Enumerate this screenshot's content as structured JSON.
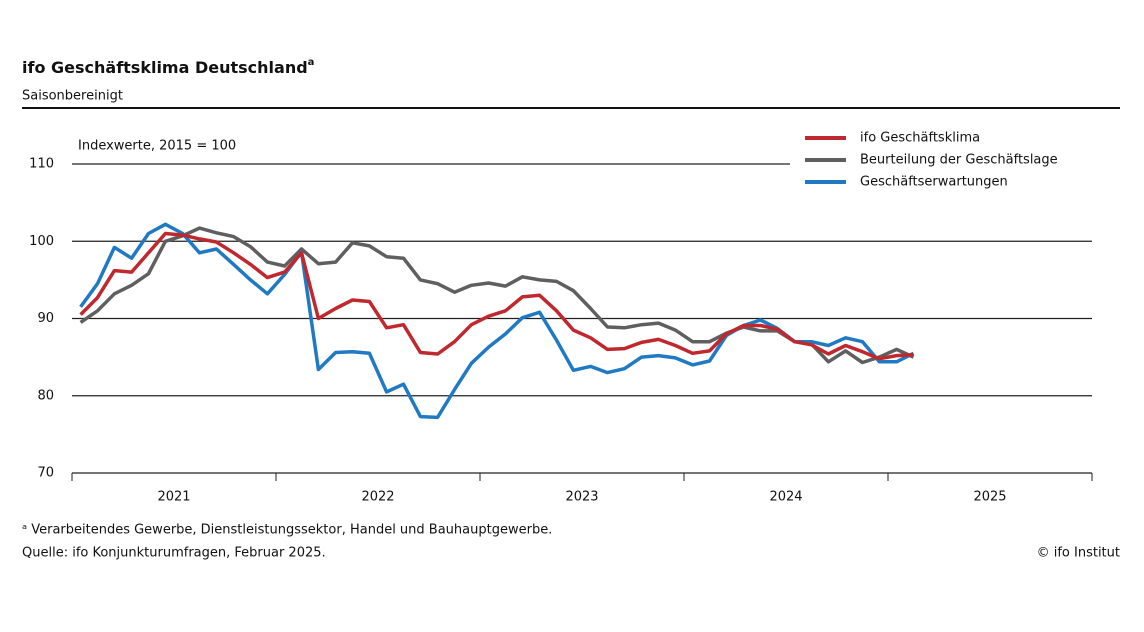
{
  "chart_data": {
    "type": "line",
    "title": "ifo Geschäftsklima Deutschland",
    "title_note": "a",
    "subtitle": "Saisonbereinigt",
    "annotation": "Indexwerte, 2015 = 100",
    "notes": [
      "ᵃ Verarbeitendes Gewerbe, Dienstleistungssektor, Handel und Bauhauptgewerbe.",
      "Quelle: ifo Konjunkturumfragen, Februar 2025."
    ],
    "credit": "© ifo Institut",
    "x": [
      2021.042,
      2021.125,
      2021.208,
      2021.292,
      2021.375,
      2021.458,
      2021.542,
      2021.625,
      2021.708,
      2021.792,
      2021.875,
      2021.958,
      2022.042,
      2022.125,
      2022.208,
      2022.292,
      2022.375,
      2022.458,
      2022.542,
      2022.625,
      2022.708,
      2022.792,
      2022.875,
      2022.958,
      2023.042,
      2023.125,
      2023.208,
      2023.292,
      2023.375,
      2023.458,
      2023.542,
      2023.625,
      2023.708,
      2023.792,
      2023.875,
      2023.958,
      2024.042,
      2024.125,
      2024.208,
      2024.292,
      2024.375,
      2024.458,
      2024.542,
      2024.625,
      2024.708,
      2024.792,
      2024.875,
      2024.958,
      2025.042,
      2025.125
    ],
    "series": [
      {
        "name": "ifo Geschäftsklima",
        "color": "#c0282d",
        "values": [
          90.5,
          92.7,
          96.2,
          96,
          98.5,
          101,
          100.8,
          100.3,
          99.9,
          98.5,
          97,
          95.3,
          96,
          98.5,
          90,
          91.3,
          92.4,
          92.2,
          88.8,
          89.2,
          85.6,
          85.4,
          87,
          89.2,
          90.3,
          91,
          92.8,
          93,
          91,
          88.5,
          87.5,
          86,
          86.1,
          86.9,
          87.3,
          86.5,
          85.5,
          85.8,
          88,
          89.1,
          89.1,
          88.6,
          87,
          86.6,
          85.4,
          86.5,
          85.7,
          84.8,
          85.2,
          85.3
        ]
      },
      {
        "name": "Beurteilung der Geschäftslage",
        "color": "#5f5f5f",
        "values": [
          89.5,
          91,
          93.2,
          94.3,
          95.8,
          100,
          100.7,
          101.7,
          101.1,
          100.6,
          99.3,
          97.3,
          96.8,
          99,
          97.1,
          97.3,
          99.8,
          99.4,
          98,
          97.8,
          95,
          94.5,
          93.4,
          94.3,
          94.6,
          94.2,
          95.4,
          95,
          94.8,
          93.6,
          91.3,
          88.9,
          88.8,
          89.2,
          89.4,
          88.5,
          87,
          87,
          88.1,
          88.9,
          88.4,
          88.4,
          87,
          86.7,
          84.4,
          85.8,
          84.3,
          85,
          86,
          85
        ]
      },
      {
        "name": "Geschäftserwartungen",
        "color": "#1f7ac3",
        "values": [
          91.5,
          94.5,
          99.2,
          97.8,
          101,
          102.2,
          101,
          98.5,
          99,
          97,
          95,
          93.2,
          95.7,
          98.6,
          83.4,
          85.6,
          85.7,
          85.5,
          80.5,
          81.5,
          77.3,
          77.2,
          80.8,
          84.2,
          86.3,
          88,
          90.1,
          90.8,
          87.2,
          83.3,
          83.8,
          83,
          83.5,
          85,
          85.2,
          84.9,
          84,
          84.5,
          87.8,
          89.1,
          89.8,
          88.7,
          87,
          87,
          86.5,
          87.5,
          87,
          84.4,
          84.4,
          85.5
        ]
      }
    ],
    "xlim": [
      2021,
      2026
    ],
    "xticks": [
      {
        "value": 2021.5,
        "label": "2021"
      },
      {
        "value": 2022.5,
        "label": "2022"
      },
      {
        "value": 2023.5,
        "label": "2023"
      },
      {
        "value": 2024.5,
        "label": "2024"
      },
      {
        "value": 2025.5,
        "label": "2025"
      }
    ],
    "ylim": [
      70,
      110
    ],
    "yticks": [
      70,
      80,
      90,
      100,
      110
    ],
    "grid": true
  }
}
